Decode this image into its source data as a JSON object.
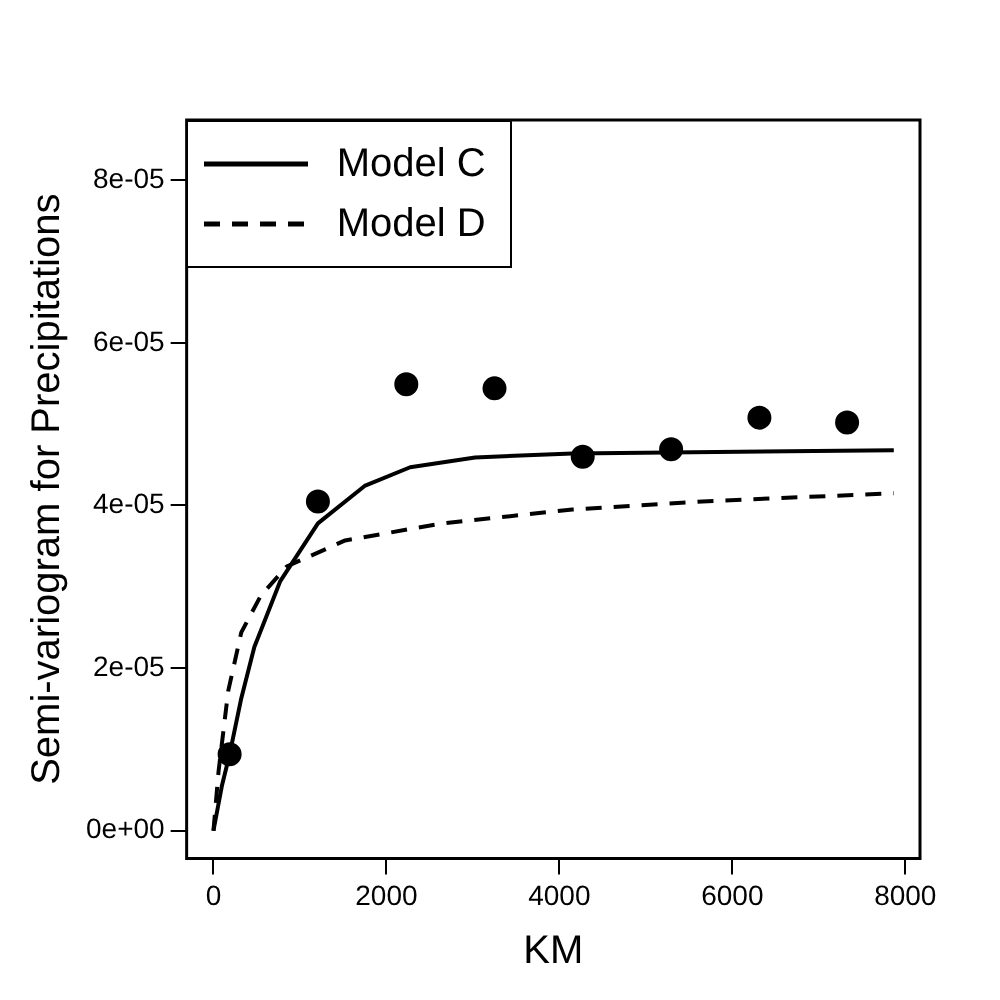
{
  "chart_data": {
    "type": "scatter",
    "xlabel": "KM",
    "ylabel": "Semi-variogram for Precipitations",
    "xlim": [
      -310,
      8170
    ],
    "ylim": [
      -3.4e-06,
      8.74e-05
    ],
    "xticks": [
      0,
      2000,
      4000,
      6000,
      8000
    ],
    "yticks": [
      {
        "value": 0,
        "label": "0e+00"
      },
      {
        "value": 2e-05,
        "label": "2e-05"
      },
      {
        "value": 4e-05,
        "label": "4e-05"
      },
      {
        "value": 6e-05,
        "label": "6e-05"
      },
      {
        "value": 8e-05,
        "label": "8e-05"
      }
    ],
    "grid": false,
    "legend": "top left",
    "series": [
      {
        "type": "scatter",
        "color": "#000000",
        "marker": "circle",
        "x": [
          187,
          1208,
          2230,
          3250,
          4270,
          5292,
          6313,
          7327
        ],
        "values": [
          9.4e-06,
          4.05e-05,
          5.49e-05,
          5.44e-05,
          4.6e-05,
          4.69e-05,
          5.08e-05,
          5.02e-05
        ]
      },
      {
        "type": "line",
        "name": "Model C",
        "color": "#000000",
        "marker": "none",
        "line_style": "solid",
        "x": [
          0,
          97,
          187,
          322,
          473,
          773,
          1208,
          1748,
          2275,
          3025,
          4151,
          7867
        ],
        "values": [
          0,
          5.5e-06,
          9.4e-06,
          1.63e-05,
          2.26e-05,
          3.07e-05,
          3.78e-05,
          4.24e-05,
          4.47e-05,
          4.59e-05,
          4.64e-05,
          4.68e-05
        ]
      },
      {
        "type": "line",
        "name": "Model D",
        "color": "#000000",
        "marker": "none",
        "line_style": "dashed",
        "x": [
          0,
          59,
          171,
          322,
          547,
          847,
          1523,
          2649,
          4151,
          5653,
          7867
        ],
        "values": [
          0,
          7.3e-06,
          1.72e-05,
          2.44e-05,
          2.89e-05,
          3.25e-05,
          3.57e-05,
          3.78e-05,
          3.95e-05,
          4.05e-05,
          4.15e-05
        ]
      }
    ]
  }
}
